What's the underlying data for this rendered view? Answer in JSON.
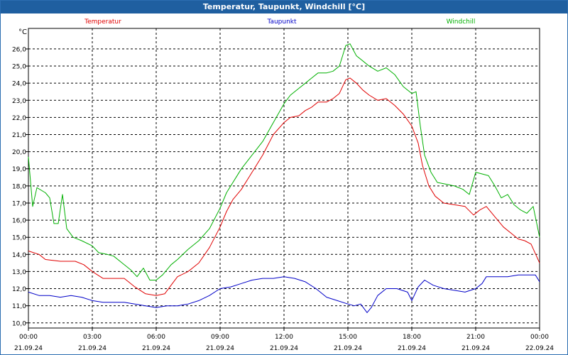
{
  "window": {
    "title": "Temperatur, Taupunkt, Windchill [°C]"
  },
  "chart_data": {
    "type": "line",
    "title": "Temperatur, Taupunkt, Windchill [°C]",
    "ylabel": "°C",
    "ylim": [
      9.7,
      27.2
    ],
    "xlim": [
      0,
      24
    ],
    "grid": true,
    "legend_placement": "top",
    "y_ticks": [
      "10,0",
      "11,0",
      "12,0",
      "13,0",
      "14,0",
      "15,0",
      "16,0",
      "17,0",
      "18,0",
      "19,0",
      "20,0",
      "21,0",
      "22,0",
      "23,0",
      "24,0",
      "25,0",
      "26,0"
    ],
    "x_ticks": [
      {
        "time": "00:00",
        "date": "21.09.24"
      },
      {
        "time": "03:00",
        "date": "21.09.24"
      },
      {
        "time": "06:00",
        "date": "21.09.24"
      },
      {
        "time": "09:00",
        "date": "21.09.24"
      },
      {
        "time": "12:00",
        "date": "21.09.24"
      },
      {
        "time": "15:00",
        "date": "21.09.24"
      },
      {
        "time": "18:00",
        "date": "21.09.24"
      },
      {
        "time": "21:00",
        "date": "21.09.24"
      },
      {
        "time": "00:00",
        "date": "22.09.24"
      }
    ],
    "series": [
      {
        "name": "Temperatur",
        "color": "#e00000",
        "points": [
          [
            0,
            14.2
          ],
          [
            0.5,
            14.0
          ],
          [
            0.8,
            13.7
          ],
          [
            1.5,
            13.6
          ],
          [
            2.2,
            13.6
          ],
          [
            2.6,
            13.4
          ],
          [
            3.0,
            13.0
          ],
          [
            3.5,
            12.6
          ],
          [
            4.0,
            12.6
          ],
          [
            4.5,
            12.6
          ],
          [
            5.0,
            12.1
          ],
          [
            5.5,
            11.7
          ],
          [
            6.0,
            11.6
          ],
          [
            6.4,
            11.7
          ],
          [
            6.7,
            12.2
          ],
          [
            7.0,
            12.7
          ],
          [
            7.5,
            13.0
          ],
          [
            8.0,
            13.5
          ],
          [
            8.5,
            14.4
          ],
          [
            9.0,
            15.6
          ],
          [
            9.3,
            16.5
          ],
          [
            9.6,
            17.2
          ],
          [
            10.0,
            17.8
          ],
          [
            10.5,
            18.8
          ],
          [
            11.0,
            19.8
          ],
          [
            11.5,
            21.0
          ],
          [
            12.0,
            21.7
          ],
          [
            12.3,
            22.0
          ],
          [
            12.7,
            22.1
          ],
          [
            13.0,
            22.4
          ],
          [
            13.3,
            22.6
          ],
          [
            13.6,
            22.9
          ],
          [
            14.0,
            22.9
          ],
          [
            14.3,
            23.1
          ],
          [
            14.6,
            23.4
          ],
          [
            14.9,
            24.2
          ],
          [
            15.1,
            24.3
          ],
          [
            15.4,
            24.0
          ],
          [
            15.7,
            23.6
          ],
          [
            16.0,
            23.3
          ],
          [
            16.4,
            23.0
          ],
          [
            16.8,
            23.1
          ],
          [
            17.2,
            22.7
          ],
          [
            17.6,
            22.2
          ],
          [
            18.0,
            21.5
          ],
          [
            18.3,
            20.5
          ],
          [
            18.5,
            19.2
          ],
          [
            18.8,
            18.0
          ],
          [
            19.1,
            17.4
          ],
          [
            19.5,
            17.0
          ],
          [
            20.0,
            16.9
          ],
          [
            20.5,
            16.8
          ],
          [
            20.9,
            16.3
          ],
          [
            21.2,
            16.6
          ],
          [
            21.5,
            16.8
          ],
          [
            21.9,
            16.2
          ],
          [
            22.3,
            15.6
          ],
          [
            22.7,
            15.2
          ],
          [
            23.0,
            14.9
          ],
          [
            23.3,
            14.8
          ],
          [
            23.6,
            14.6
          ],
          [
            24.0,
            13.5
          ]
        ]
      },
      {
        "name": "Taupunkt",
        "color": "#0000c8",
        "points": [
          [
            0,
            11.8
          ],
          [
            0.5,
            11.6
          ],
          [
            1.0,
            11.6
          ],
          [
            1.5,
            11.5
          ],
          [
            2.0,
            11.6
          ],
          [
            2.5,
            11.5
          ],
          [
            3.0,
            11.3
          ],
          [
            3.5,
            11.2
          ],
          [
            4.0,
            11.2
          ],
          [
            4.5,
            11.2
          ],
          [
            5.0,
            11.1
          ],
          [
            5.5,
            11.0
          ],
          [
            6.0,
            10.9
          ],
          [
            6.5,
            11.0
          ],
          [
            7.0,
            11.0
          ],
          [
            7.5,
            11.1
          ],
          [
            8.0,
            11.3
          ],
          [
            8.5,
            11.6
          ],
          [
            9.0,
            12.0
          ],
          [
            9.5,
            12.1
          ],
          [
            10.0,
            12.3
          ],
          [
            10.5,
            12.5
          ],
          [
            11.0,
            12.6
          ],
          [
            11.5,
            12.6
          ],
          [
            12.0,
            12.7
          ],
          [
            12.5,
            12.6
          ],
          [
            13.0,
            12.4
          ],
          [
            13.5,
            12.0
          ],
          [
            14.0,
            11.5
          ],
          [
            14.5,
            11.3
          ],
          [
            15.0,
            11.1
          ],
          [
            15.3,
            11.0
          ],
          [
            15.6,
            11.1
          ],
          [
            15.9,
            10.6
          ],
          [
            16.1,
            10.9
          ],
          [
            16.4,
            11.6
          ],
          [
            16.8,
            12.0
          ],
          [
            17.3,
            12.0
          ],
          [
            17.8,
            11.8
          ],
          [
            18.0,
            11.3
          ],
          [
            18.3,
            12.1
          ],
          [
            18.6,
            12.5
          ],
          [
            19.0,
            12.2
          ],
          [
            19.5,
            12.0
          ],
          [
            20.0,
            11.9
          ],
          [
            20.5,
            11.8
          ],
          [
            21.0,
            12.0
          ],
          [
            21.3,
            12.3
          ],
          [
            21.5,
            12.7
          ],
          [
            22.0,
            12.7
          ],
          [
            22.5,
            12.7
          ],
          [
            23.0,
            12.8
          ],
          [
            23.5,
            12.8
          ],
          [
            23.8,
            12.8
          ],
          [
            24.0,
            12.4
          ]
        ]
      },
      {
        "name": "Windchill",
        "color": "#00b000",
        "points": [
          [
            0,
            19.7
          ],
          [
            0.2,
            16.8
          ],
          [
            0.4,
            17.9
          ],
          [
            0.8,
            17.6
          ],
          [
            1.0,
            17.3
          ],
          [
            1.2,
            15.8
          ],
          [
            1.4,
            15.8
          ],
          [
            1.6,
            17.5
          ],
          [
            1.8,
            15.5
          ],
          [
            2.1,
            15.0
          ],
          [
            2.5,
            14.8
          ],
          [
            3.0,
            14.5
          ],
          [
            3.3,
            14.1
          ],
          [
            3.7,
            14.0
          ],
          [
            4.0,
            13.9
          ],
          [
            4.4,
            13.5
          ],
          [
            4.8,
            13.1
          ],
          [
            5.1,
            12.7
          ],
          [
            5.4,
            13.2
          ],
          [
            5.7,
            12.5
          ],
          [
            6.0,
            12.5
          ],
          [
            6.3,
            12.8
          ],
          [
            6.7,
            13.4
          ],
          [
            7.0,
            13.7
          ],
          [
            7.5,
            14.3
          ],
          [
            8.0,
            14.8
          ],
          [
            8.5,
            15.5
          ],
          [
            9.0,
            16.7
          ],
          [
            9.3,
            17.6
          ],
          [
            9.7,
            18.4
          ],
          [
            10.0,
            19.0
          ],
          [
            10.5,
            19.8
          ],
          [
            11.0,
            20.6
          ],
          [
            11.5,
            21.7
          ],
          [
            12.0,
            22.8
          ],
          [
            12.3,
            23.3
          ],
          [
            12.7,
            23.7
          ],
          [
            13.0,
            24.0
          ],
          [
            13.3,
            24.3
          ],
          [
            13.6,
            24.6
          ],
          [
            14.0,
            24.6
          ],
          [
            14.3,
            24.7
          ],
          [
            14.6,
            25.0
          ],
          [
            14.9,
            26.2
          ],
          [
            15.1,
            26.3
          ],
          [
            15.4,
            25.6
          ],
          [
            15.7,
            25.3
          ],
          [
            16.0,
            25.0
          ],
          [
            16.4,
            24.7
          ],
          [
            16.8,
            24.9
          ],
          [
            17.2,
            24.5
          ],
          [
            17.6,
            23.8
          ],
          [
            18.0,
            23.4
          ],
          [
            18.2,
            23.5
          ],
          [
            18.4,
            21.5
          ],
          [
            18.6,
            19.8
          ],
          [
            18.9,
            18.8
          ],
          [
            19.2,
            18.2
          ],
          [
            19.6,
            18.1
          ],
          [
            20.0,
            18.0
          ],
          [
            20.4,
            17.8
          ],
          [
            20.7,
            17.5
          ],
          [
            21.0,
            18.8
          ],
          [
            21.3,
            18.7
          ],
          [
            21.6,
            18.6
          ],
          [
            21.9,
            18.0
          ],
          [
            22.2,
            17.3
          ],
          [
            22.5,
            17.5
          ],
          [
            22.8,
            16.9
          ],
          [
            23.1,
            16.6
          ],
          [
            23.4,
            16.4
          ],
          [
            23.7,
            16.8
          ],
          [
            24.0,
            15.0
          ]
        ]
      }
    ]
  }
}
